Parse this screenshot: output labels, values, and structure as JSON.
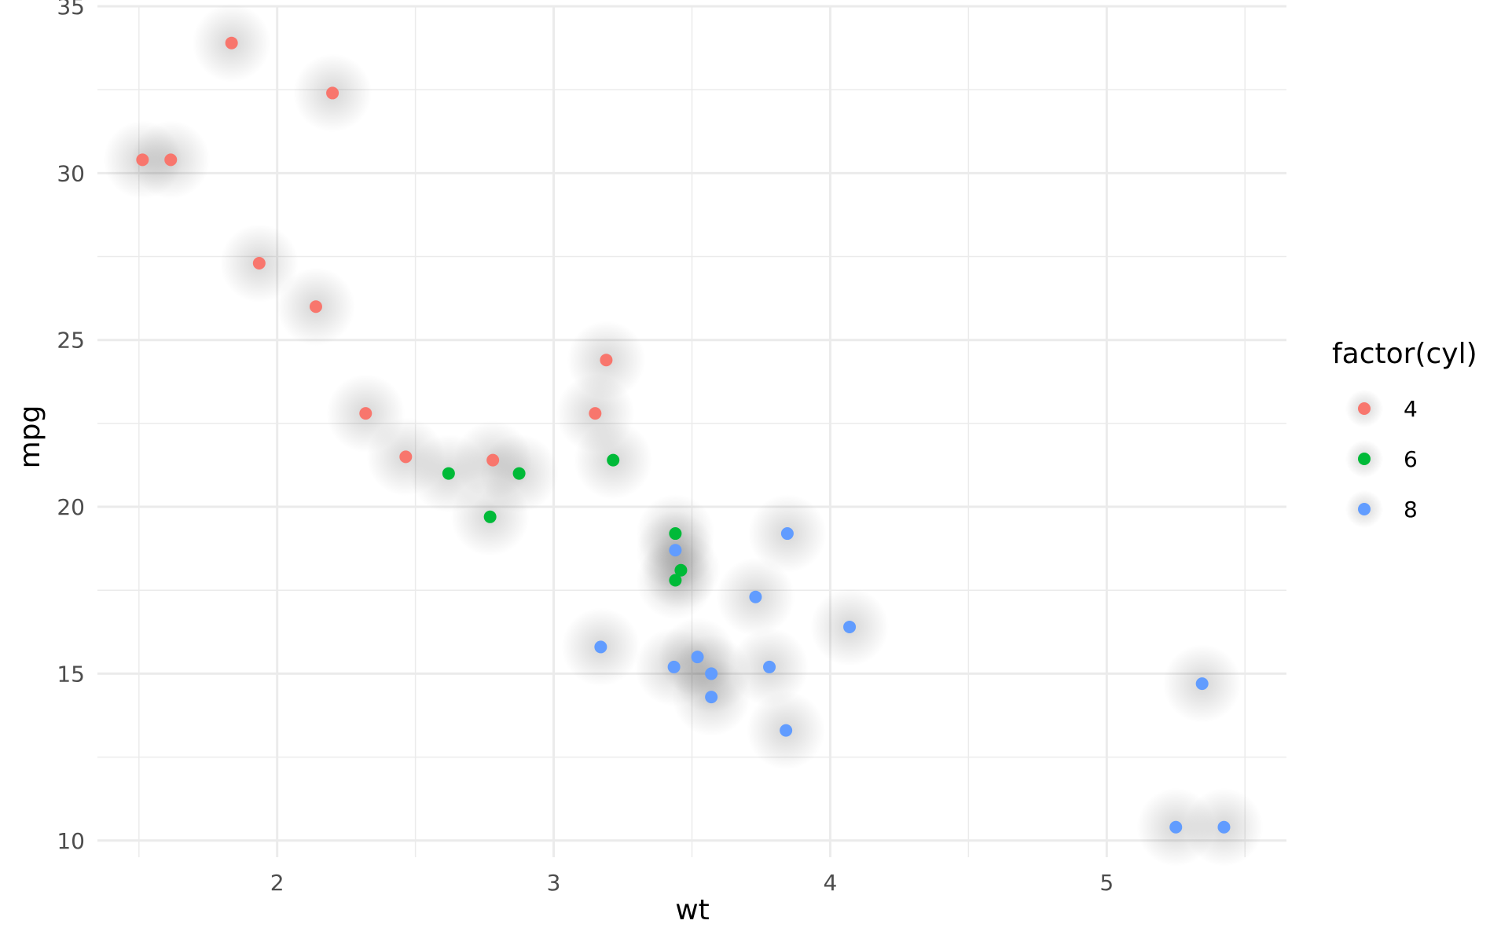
{
  "chart_data": {
    "type": "scatter",
    "xlabel": "wt",
    "ylabel": "mpg",
    "xlim": [
      1.35,
      5.65
    ],
    "ylim": [
      9.5,
      35.0
    ],
    "x_ticks": [
      2,
      3,
      4,
      5
    ],
    "y_ticks": [
      10,
      15,
      20,
      25,
      30,
      35
    ],
    "x_minor": [
      1.5,
      2.5,
      3.5,
      4.5,
      5.5
    ],
    "y_minor": [
      12.5,
      17.5,
      22.5,
      27.5,
      32.5
    ],
    "grid": true,
    "glow": true,
    "legend": {
      "title": "factor(cyl)",
      "placement": "right",
      "entries": [
        {
          "label": "4",
          "color": "#F8766D"
        },
        {
          "label": "6",
          "color": "#00BA38"
        },
        {
          "label": "8",
          "color": "#619CFF"
        }
      ]
    },
    "series": [
      {
        "name": "4",
        "color": "#F8766D",
        "points": [
          [
            2.32,
            22.8
          ],
          [
            3.19,
            24.4
          ],
          [
            3.15,
            22.8
          ],
          [
            2.2,
            32.4
          ],
          [
            1.615,
            30.4
          ],
          [
            1.835,
            33.9
          ],
          [
            2.465,
            21.5
          ],
          [
            1.935,
            27.3
          ],
          [
            2.14,
            26.0
          ],
          [
            1.513,
            30.4
          ],
          [
            2.78,
            21.4
          ]
        ]
      },
      {
        "name": "6",
        "color": "#00BA38",
        "points": [
          [
            2.62,
            21.0
          ],
          [
            2.875,
            21.0
          ],
          [
            3.215,
            21.4
          ],
          [
            3.46,
            18.1
          ],
          [
            3.44,
            19.2
          ],
          [
            3.44,
            17.8
          ],
          [
            2.77,
            19.7
          ]
        ]
      },
      {
        "name": "8",
        "color": "#619CFF",
        "points": [
          [
            3.44,
            18.7
          ],
          [
            3.57,
            14.3
          ],
          [
            4.07,
            16.4
          ],
          [
            3.73,
            17.3
          ],
          [
            3.78,
            15.2
          ],
          [
            5.25,
            10.4
          ],
          [
            5.424,
            10.4
          ],
          [
            5.345,
            14.7
          ],
          [
            3.52,
            15.5
          ],
          [
            3.435,
            15.2
          ],
          [
            3.84,
            13.3
          ],
          [
            3.845,
            19.2
          ],
          [
            3.17,
            15.8
          ],
          [
            3.57,
            15.0
          ]
        ]
      }
    ]
  }
}
